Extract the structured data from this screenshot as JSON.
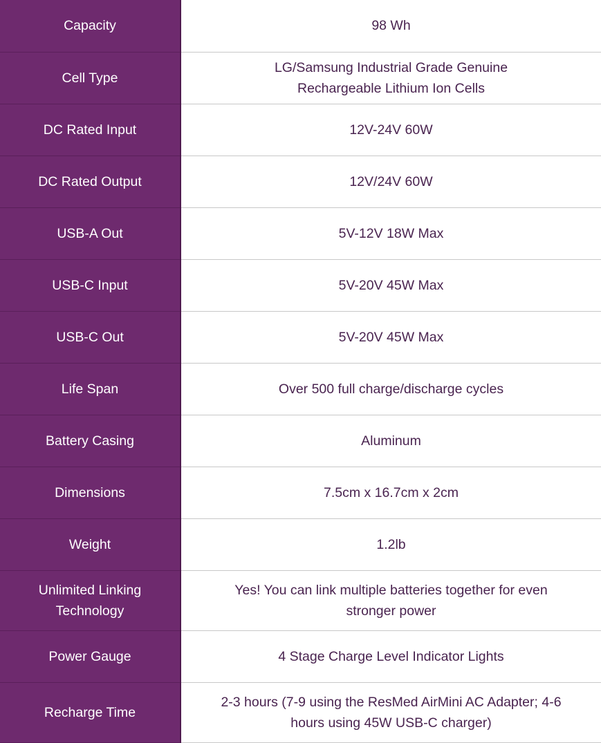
{
  "colors": {
    "label_bg": "#6e2a6e",
    "value_text": "#4a2450",
    "label_text": "#ffffff"
  },
  "rows": [
    {
      "label": "Capacity",
      "value": "98 Wh"
    },
    {
      "label": "Cell Type",
      "value": "LG/Samsung Industrial Grade Genuine Rechargeable Lithium Ion Cells"
    },
    {
      "label": "DC Rated Input",
      "value": "12V-24V 60W"
    },
    {
      "label": "DC Rated Output",
      "value": "12V/24V 60W"
    },
    {
      "label": "USB-A Out",
      "value": "5V-12V 18W Max"
    },
    {
      "label": "USB-C Input",
      "value": "5V-20V 45W Max"
    },
    {
      "label": "USB-C Out",
      "value": "5V-20V 45W Max"
    },
    {
      "label": "Life Span",
      "value": "Over 500 full charge/discharge cycles"
    },
    {
      "label": "Battery Casing",
      "value": "Aluminum"
    },
    {
      "label": "Dimensions",
      "value": "7.5cm x 16.7cm x 2cm"
    },
    {
      "label": "Weight",
      "value": "1.2lb"
    },
    {
      "label": "Unlimited Linking Technology",
      "value": "Yes! You can link multiple batteries together for even stronger power"
    },
    {
      "label": "Power Gauge",
      "value": "4 Stage Charge Level Indicator Lights"
    },
    {
      "label": "Recharge Time",
      "value": "2-3 hours (7-9 using the ResMed AirMini AC Adapter; 4-6 hours using 45W USB-C charger)"
    }
  ]
}
